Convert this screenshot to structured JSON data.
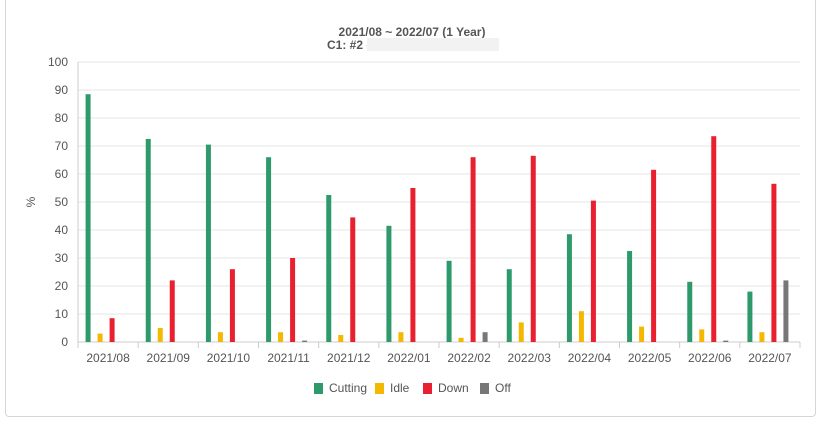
{
  "chart_data": {
    "type": "bar",
    "title": "2021/08 ~ 2022/07 (1 Year)",
    "subtitle": "C1: #2 -",
    "ylabel": "%",
    "xlabel": "",
    "ylim": [
      0,
      100
    ],
    "yticks": [
      0,
      10,
      20,
      30,
      40,
      50,
      60,
      70,
      80,
      90,
      100
    ],
    "grid": true,
    "legend_position": "bottom",
    "categories": [
      "2021/08",
      "2021/09",
      "2021/10",
      "2021/11",
      "2021/12",
      "2022/01",
      "2022/02",
      "2022/03",
      "2022/04",
      "2022/05",
      "2022/06",
      "2022/07"
    ],
    "series": [
      {
        "name": "Cutting",
        "color": "#2e9a6b",
        "values": [
          88.5,
          72.5,
          70.5,
          66,
          52.5,
          41.5,
          29,
          26,
          38.5,
          32.5,
          21.5,
          18
        ]
      },
      {
        "name": "Idle",
        "color": "#f5b800",
        "values": [
          3,
          5,
          3.5,
          3.5,
          2.5,
          3.5,
          1.5,
          7,
          11,
          5.5,
          4.5,
          3.5
        ]
      },
      {
        "name": "Down",
        "color": "#e8202f",
        "values": [
          8.5,
          22,
          26,
          30,
          44.5,
          55,
          66,
          66.5,
          50.5,
          61.5,
          73.5,
          56.5
        ]
      },
      {
        "name": "Off",
        "color": "#777777",
        "values": [
          0,
          0,
          0,
          0.5,
          0,
          0,
          3.5,
          0,
          0,
          0,
          0.5,
          22
        ]
      }
    ]
  }
}
